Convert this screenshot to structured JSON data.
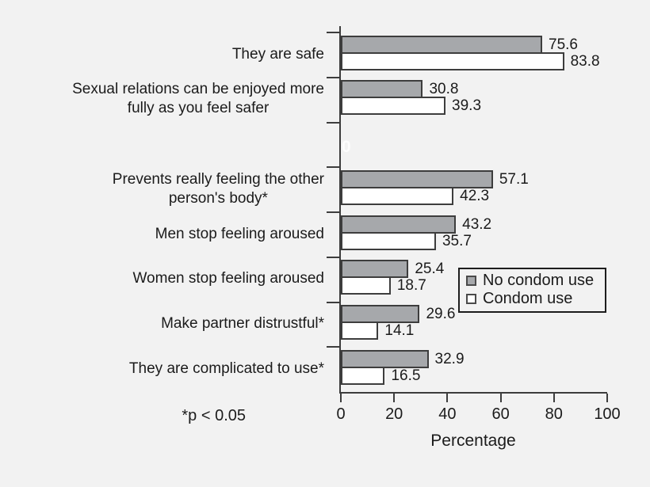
{
  "figure": {
    "background_color": "#f2f2f2",
    "footnote": "*p < 0.05",
    "artifact_zero": "0"
  },
  "chart_data": {
    "type": "bar",
    "orientation": "horizontal",
    "title": "",
    "xlabel": "Percentage",
    "ylabel": "",
    "xlim": [
      0,
      100
    ],
    "x_ticks": [
      0,
      20,
      40,
      60,
      80,
      100
    ],
    "grid": false,
    "bar_value_labels": true,
    "legend_position": "right-middle",
    "categories": [
      "They are safe",
      "Sexual relations can be enjoyed more\nfully as you feel safer",
      "Prevents really feeling the other\nperson's body*",
      "Men stop feeling aroused",
      "Women stop feeling aroused",
      "Make partner distrustful*",
      "They are complicated to use*"
    ],
    "gap_after_category_index": 1,
    "series": [
      {
        "name": "No condom use",
        "color": "#a6a8ab",
        "values": [
          75.6,
          30.8,
          57.1,
          43.2,
          25.4,
          29.6,
          32.9
        ]
      },
      {
        "name": "Condom use",
        "color": "#ffffff",
        "values": [
          83.8,
          39.3,
          42.3,
          35.7,
          18.7,
          14.1,
          16.5
        ]
      }
    ]
  }
}
